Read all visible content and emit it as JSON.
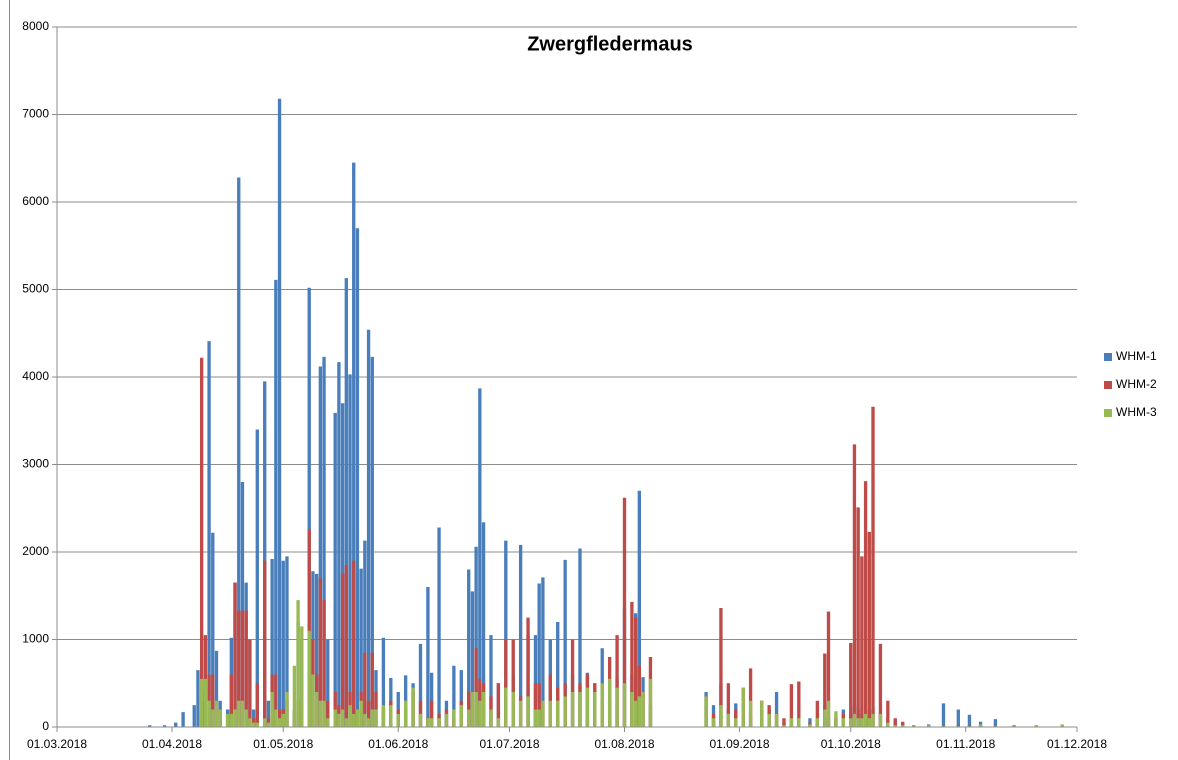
{
  "chart_data": {
    "type": "bar",
    "title": "Zwergfledermaus",
    "x": [
      "2018-03-26",
      "2018-03-30",
      "2018-04-02",
      "2018-04-04",
      "2018-04-07",
      "2018-04-08",
      "2018-04-09",
      "2018-04-10",
      "2018-04-11",
      "2018-04-12",
      "2018-04-13",
      "2018-04-14",
      "2018-04-16",
      "2018-04-17",
      "2018-04-18",
      "2018-04-19",
      "2018-04-20",
      "2018-04-21",
      "2018-04-22",
      "2018-04-23",
      "2018-04-24",
      "2018-04-26",
      "2018-04-27",
      "2018-04-28",
      "2018-04-29",
      "2018-04-30",
      "2018-05-01",
      "2018-05-02",
      "2018-05-04",
      "2018-05-05",
      "2018-05-06",
      "2018-05-08",
      "2018-05-09",
      "2018-05-10",
      "2018-05-11",
      "2018-05-12",
      "2018-05-13",
      "2018-05-15",
      "2018-05-16",
      "2018-05-17",
      "2018-05-18",
      "2018-05-19",
      "2018-05-20",
      "2018-05-21",
      "2018-05-22",
      "2018-05-23",
      "2018-05-24",
      "2018-05-25",
      "2018-05-26",
      "2018-05-28",
      "2018-05-30",
      "2018-06-01",
      "2018-06-03",
      "2018-06-05",
      "2018-06-07",
      "2018-06-09",
      "2018-06-10",
      "2018-06-12",
      "2018-06-14",
      "2018-06-16",
      "2018-06-18",
      "2018-06-20",
      "2018-06-21",
      "2018-06-22",
      "2018-06-23",
      "2018-06-24",
      "2018-06-26",
      "2018-06-28",
      "2018-06-30",
      "2018-07-02",
      "2018-07-04",
      "2018-07-06",
      "2018-07-08",
      "2018-07-09",
      "2018-07-10",
      "2018-07-12",
      "2018-07-14",
      "2018-07-16",
      "2018-07-18",
      "2018-07-20",
      "2018-07-22",
      "2018-07-24",
      "2018-07-26",
      "2018-07-28",
      "2018-07-30",
      "2018-08-01",
      "2018-08-03",
      "2018-08-04",
      "2018-08-05",
      "2018-08-06",
      "2018-08-08",
      "2018-08-23",
      "2018-08-25",
      "2018-08-27",
      "2018-08-29",
      "2018-08-31",
      "2018-09-02",
      "2018-09-04",
      "2018-09-07",
      "2018-09-09",
      "2018-09-11",
      "2018-09-13",
      "2018-09-15",
      "2018-09-17",
      "2018-09-20",
      "2018-09-22",
      "2018-09-24",
      "2018-09-25",
      "2018-09-27",
      "2018-09-29",
      "2018-10-01",
      "2018-10-02",
      "2018-10-03",
      "2018-10-04",
      "2018-10-05",
      "2018-10-06",
      "2018-10-07",
      "2018-10-09",
      "2018-10-11",
      "2018-10-13",
      "2018-10-15",
      "2018-10-18",
      "2018-10-22",
      "2018-10-26",
      "2018-10-30",
      "2018-11-02",
      "2018-11-05",
      "2018-11-09",
      "2018-11-14",
      "2018-11-20",
      "2018-11-27"
    ],
    "series": [
      {
        "name": "WHM-1",
        "color": "#4a7ebb",
        "values": [
          20,
          20,
          50,
          170,
          250,
          650,
          400,
          300,
          4410,
          2220,
          870,
          300,
          200,
          1020,
          1650,
          6280,
          2800,
          1650,
          1000,
          200,
          3400,
          3950,
          300,
          1920,
          5110,
          7180,
          1900,
          1950,
          200,
          1200,
          1000,
          5020,
          1780,
          1750,
          4120,
          4230,
          1000,
          3590,
          4170,
          3700,
          5130,
          4030,
          6450,
          5700,
          1810,
          2130,
          4540,
          4230,
          650,
          1020,
          560,
          400,
          590,
          500,
          950,
          1600,
          620,
          2280,
          300,
          700,
          650,
          1800,
          1550,
          2060,
          3870,
          2340,
          1050,
          500,
          2130,
          600,
          2080,
          1050,
          1050,
          1640,
          1710,
          1000,
          1200,
          1910,
          600,
          2040,
          620,
          500,
          900,
          300,
          550,
          1350,
          600,
          1300,
          2700,
          570,
          250,
          400,
          250,
          500,
          200,
          270,
          200,
          100,
          200,
          200,
          400,
          50,
          80,
          50,
          100,
          80,
          250,
          100,
          100,
          200,
          150,
          250,
          200,
          150,
          100,
          200,
          200,
          150,
          100,
          80,
          50,
          20,
          30,
          270,
          200,
          140,
          60,
          90,
          20,
          20,
          20
        ]
      },
      {
        "name": "WHM-2",
        "color": "#be4b48",
        "values": [
          0,
          0,
          0,
          0,
          0,
          0,
          4220,
          1050,
          600,
          600,
          200,
          150,
          150,
          600,
          1650,
          1330,
          1330,
          1330,
          1000,
          100,
          500,
          1900,
          100,
          600,
          600,
          200,
          200,
          300,
          150,
          300,
          300,
          2260,
          1000,
          600,
          1700,
          1450,
          300,
          400,
          250,
          1750,
          1850,
          400,
          1900,
          200,
          400,
          850,
          300,
          850,
          400,
          200,
          300,
          200,
          200,
          400,
          300,
          100,
          300,
          150,
          200,
          100,
          300,
          400,
          300,
          900,
          550,
          500,
          350,
          500,
          1000,
          1000,
          350,
          1250,
          500,
          500,
          300,
          600,
          450,
          500,
          1000,
          500,
          600,
          500,
          300,
          800,
          1050,
          2620,
          1430,
          1250,
          700,
          400,
          800,
          350,
          150,
          1360,
          500,
          200,
          450,
          670,
          300,
          250,
          150,
          100,
          490,
          520,
          50,
          300,
          840,
          1320,
          100,
          150,
          960,
          3230,
          2510,
          1950,
          2810,
          2230,
          3660,
          950,
          300,
          100,
          60,
          20,
          20,
          10,
          20,
          20,
          20,
          10,
          10,
          10,
          10
        ]
      },
      {
        "name": "WHM-3",
        "color": "#98b954",
        "values": [
          0,
          0,
          0,
          0,
          0,
          0,
          550,
          550,
          300,
          200,
          300,
          200,
          150,
          150,
          200,
          300,
          300,
          200,
          100,
          50,
          50,
          100,
          50,
          400,
          200,
          100,
          150,
          400,
          700,
          1450,
          1150,
          1100,
          600,
          400,
          300,
          300,
          100,
          200,
          150,
          200,
          100,
          250,
          150,
          200,
          300,
          150,
          100,
          200,
          200,
          250,
          250,
          150,
          300,
          450,
          150,
          100,
          100,
          100,
          150,
          200,
          250,
          200,
          400,
          400,
          300,
          400,
          200,
          100,
          450,
          400,
          300,
          350,
          200,
          200,
          300,
          300,
          300,
          350,
          400,
          400,
          450,
          400,
          500,
          550,
          450,
          500,
          400,
          300,
          350,
          400,
          550,
          350,
          100,
          250,
          150,
          100,
          450,
          300,
          300,
          150,
          150,
          20,
          100,
          100,
          30,
          100,
          200,
          300,
          180,
          100,
          100,
          150,
          100,
          100,
          150,
          100,
          150,
          150,
          50,
          20,
          20,
          20,
          20,
          10,
          10,
          10,
          30,
          10,
          10,
          20,
          30
        ]
      }
    ],
    "xlim": [
      "2018-03-01",
      "2018-12-01"
    ],
    "xticks": [
      {
        "value": "2018-03-01",
        "label": "01.03.2018"
      },
      {
        "value": "2018-04-01",
        "label": "01.04.2018"
      },
      {
        "value": "2018-05-01",
        "label": "01.05.2018"
      },
      {
        "value": "2018-06-01",
        "label": "01.06.2018"
      },
      {
        "value": "2018-07-01",
        "label": "01.07.2018"
      },
      {
        "value": "2018-08-01",
        "label": "01.08.2018"
      },
      {
        "value": "2018-09-01",
        "label": "01.09.2018"
      },
      {
        "value": "2018-10-01",
        "label": "01.10.2018"
      },
      {
        "value": "2018-11-01",
        "label": "01.11.2018"
      },
      {
        "value": "2018-12-01",
        "label": "01.12.2018"
      }
    ],
    "ylim": [
      0,
      8000
    ],
    "yticks": [
      0,
      1000,
      2000,
      3000,
      4000,
      5000,
      6000,
      7000,
      8000
    ],
    "grid": true,
    "legend": "right"
  }
}
